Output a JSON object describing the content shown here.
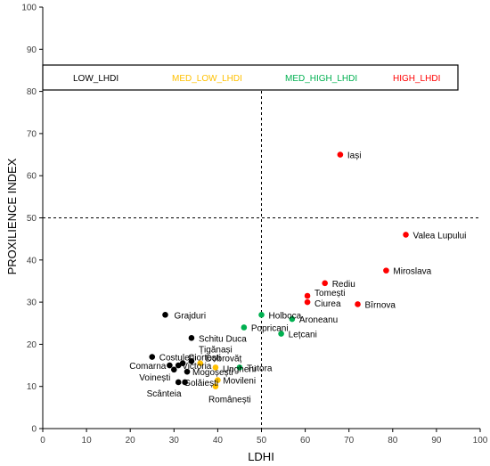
{
  "chart_data": {
    "type": "scatter",
    "title": "",
    "xlabel": "LDHI",
    "ylabel": "PROXILIENCE INDEX",
    "xlim": [
      0,
      100
    ],
    "ylim": [
      0,
      100
    ],
    "x_ticks": [
      0,
      10,
      20,
      30,
      40,
      50,
      60,
      70,
      80,
      90,
      100
    ],
    "y_ticks": [
      0,
      10,
      20,
      30,
      40,
      50,
      60,
      70,
      80,
      90,
      100
    ],
    "grid": false,
    "reference_lines": {
      "x": 50,
      "y": 50,
      "style": "dashed"
    },
    "legend": [
      {
        "name": "LOW_LHDI",
        "color": "#000000"
      },
      {
        "name": "MED_LOW_LHDI",
        "color": "#FFC000"
      },
      {
        "name": "MED_HIGH_LHDI",
        "color": "#00B050"
      },
      {
        "name": "HIGH_LHDI",
        "color": "#FF0000"
      }
    ],
    "points": [
      {
        "label": "Iași",
        "x": 68,
        "y": 65,
        "group": 3
      },
      {
        "label": "Valea Lupului",
        "x": 83,
        "y": 46,
        "group": 3
      },
      {
        "label": "Miroslava",
        "x": 78.5,
        "y": 37.5,
        "group": 3
      },
      {
        "label": "Rediu",
        "x": 64.5,
        "y": 34.5,
        "group": 3
      },
      {
        "label": "Tomești",
        "x": 60.5,
        "y": 31.5,
        "group": 3
      },
      {
        "label": "Ciurea",
        "x": 60.5,
        "y": 30,
        "group": 3
      },
      {
        "label": "Bîrnova",
        "x": 72,
        "y": 29.5,
        "group": 3
      },
      {
        "label": "Holboca",
        "x": 50,
        "y": 27,
        "group": 2
      },
      {
        "label": "Aroneanu",
        "x": 57,
        "y": 26,
        "group": 2
      },
      {
        "label": "Popricani",
        "x": 46,
        "y": 24,
        "group": 2
      },
      {
        "label": "Lețcani",
        "x": 54.5,
        "y": 22.5,
        "group": 2
      },
      {
        "label": "Tutora",
        "x": 45,
        "y": 14.5,
        "group": 2
      },
      {
        "label": "Grajduri",
        "x": 28,
        "y": 27,
        "group": 0
      },
      {
        "label": "Schitu Duca",
        "x": 34,
        "y": 21.5,
        "group": 0
      },
      {
        "label": "Țigănași",
        "x": 34,
        "y": 16,
        "group": 0
      },
      {
        "label": "Costuleni",
        "x": 25,
        "y": 17,
        "group": 0
      },
      {
        "label": "Dobrovăț",
        "x": 36,
        "y": 15.5,
        "group": 1
      },
      {
        "label": "Ciortești",
        "x": 32,
        "y": 15.5,
        "group": 0
      },
      {
        "label": "Victoria",
        "x": 31,
        "y": 15,
        "group": 0
      },
      {
        "label": "Comarna",
        "x": 29,
        "y": 15,
        "group": 0
      },
      {
        "label": "Ungheni",
        "x": 39.5,
        "y": 14.5,
        "group": 1
      },
      {
        "label": "Mogoșești",
        "x": 33,
        "y": 13.5,
        "group": 0
      },
      {
        "label": "Voinești",
        "x": 30,
        "y": 14,
        "group": 0
      },
      {
        "label": "Golăiești",
        "x": 31,
        "y": 11,
        "group": 0
      },
      {
        "label": "Movileni",
        "x": 40,
        "y": 11.5,
        "group": 1
      },
      {
        "label": "Scânteia",
        "x": 32.5,
        "y": 11,
        "group": 0
      },
      {
        "label": "Românești",
        "x": 39.5,
        "y": 10,
        "group": 1
      }
    ]
  }
}
